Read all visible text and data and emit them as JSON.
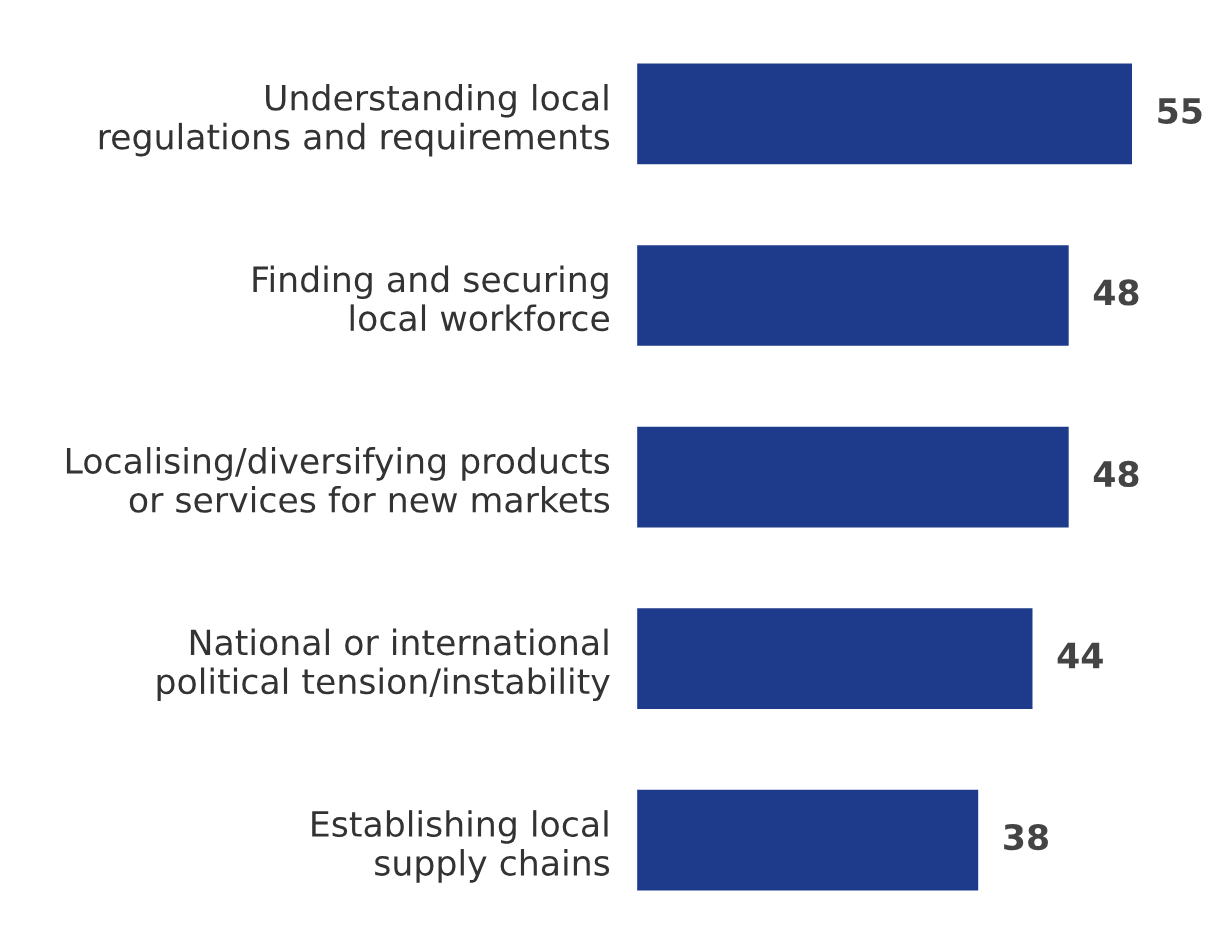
{
  "chart_data": {
    "type": "bar",
    "orientation": "horizontal",
    "data_labels": true,
    "grid": false,
    "legend": false,
    "categories": [
      "Understanding local\nregulations and requirements",
      "Finding and securing\nlocal workforce",
      "Localising/diversifying products\nor services for new markets",
      "National or international\npolitical tension/instability",
      "Establishing local\nsupply chains"
    ],
    "values": [
      55,
      48,
      48,
      44,
      38
    ],
    "color": "#1e3a8a"
  }
}
